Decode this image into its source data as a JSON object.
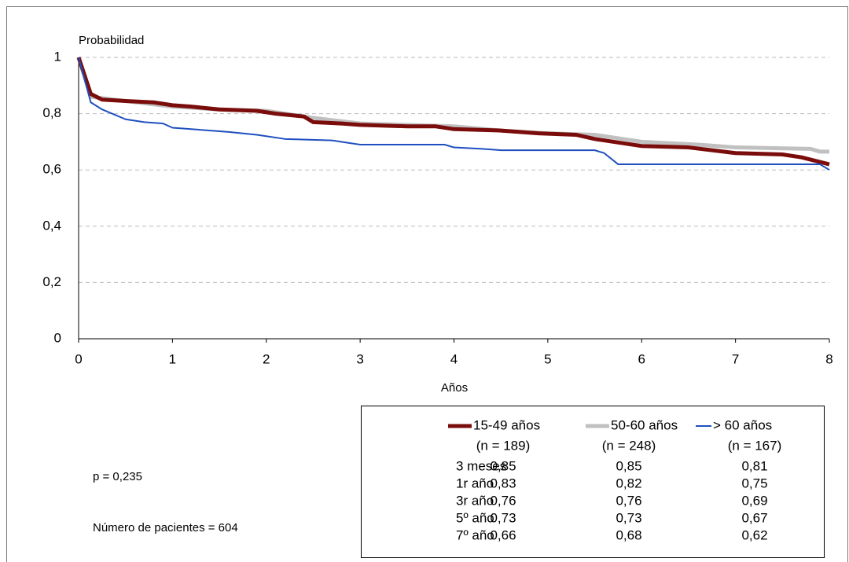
{
  "chart_data": {
    "type": "line",
    "y_label": "Probabilidad",
    "x_label": "Años",
    "xlim": [
      0,
      8
    ],
    "xticks": [
      0,
      1,
      2,
      3,
      4,
      5,
      6,
      7,
      8
    ],
    "ylim": [
      0,
      1
    ],
    "yticks": [
      0,
      {
        "value": 0.2,
        "label": "0,2"
      },
      {
        "value": 0.4,
        "label": "0,4"
      },
      {
        "value": 0.6,
        "label": "0,6"
      },
      {
        "value": 0.8,
        "label": "0,8"
      },
      1
    ],
    "grid": true,
    "series": [
      {
        "name": "15-49 años",
        "n_label": "(n = 189)",
        "color": "#7b0c0c",
        "width": 5,
        "x": [
          0,
          0.13,
          0.25,
          0.5,
          0.8,
          1,
          1.2,
          1.5,
          1.9,
          2.1,
          2.4,
          2.5,
          2.8,
          3,
          3.5,
          3.8,
          4,
          4.5,
          4.9,
          5.3,
          5.5,
          5.8,
          6,
          6.5,
          7,
          7.5,
          7.7,
          8
        ],
        "values": [
          1,
          0.87,
          0.85,
          0.845,
          0.84,
          0.83,
          0.825,
          0.815,
          0.81,
          0.8,
          0.79,
          0.77,
          0.765,
          0.76,
          0.755,
          0.755,
          0.745,
          0.74,
          0.73,
          0.725,
          0.71,
          0.695,
          0.685,
          0.68,
          0.66,
          0.655,
          0.645,
          0.62
        ]
      },
      {
        "name": "50-60 años",
        "n_label": "(n = 248)",
        "color": "#c0c0c0",
        "width": 5,
        "x": [
          0,
          0.13,
          0.5,
          1,
          1.5,
          2,
          2.5,
          3,
          4,
          4.5,
          5,
          5.5,
          5.8,
          6,
          6.6,
          7,
          7.8,
          7.9,
          8
        ],
        "values": [
          1,
          0.86,
          0.845,
          0.825,
          0.815,
          0.81,
          0.785,
          0.765,
          0.755,
          0.74,
          0.73,
          0.725,
          0.71,
          0.7,
          0.69,
          0.68,
          0.675,
          0.665,
          0.665
        ]
      },
      {
        "name": "> 60 años",
        "n_label": "(n = 167)",
        "color": "#1f4fbf",
        "width": 2,
        "x": [
          0,
          0.13,
          0.25,
          0.5,
          0.7,
          0.9,
          1,
          1.2,
          1.6,
          1.9,
          2.2,
          2.7,
          3,
          3.9,
          4,
          4.3,
          4.5,
          5.5,
          5.6,
          5.75,
          7.9,
          8
        ],
        "values": [
          1,
          0.84,
          0.815,
          0.78,
          0.77,
          0.765,
          0.75,
          0.745,
          0.735,
          0.725,
          0.71,
          0.705,
          0.69,
          0.69,
          0.68,
          0.675,
          0.67,
          0.67,
          0.66,
          0.62,
          0.62,
          0.6
        ]
      }
    ],
    "annotations": [
      "p = 0,235",
      "Número de pacientes = 604"
    ],
    "summary_table": [
      {
        "label": "3 meses",
        "values": [
          "0,85",
          "0,85",
          "0,81"
        ]
      },
      {
        "label": "1r año",
        "values": [
          "0,83",
          "0,82",
          "0,75"
        ]
      },
      {
        "label": "3r año",
        "values": [
          "0,76",
          "0,76",
          "0,69"
        ]
      },
      {
        "label": "5º año",
        "values": [
          "0,73",
          "0,73",
          "0,67"
        ]
      },
      {
        "label": "7º año",
        "values": [
          "0,66",
          "0,68",
          "0,62"
        ]
      }
    ]
  }
}
